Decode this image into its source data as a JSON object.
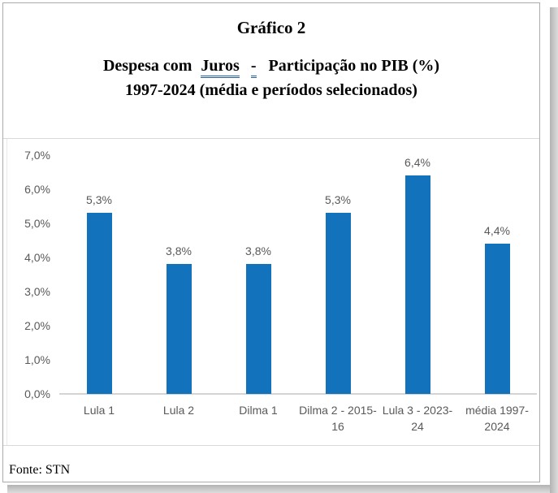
{
  "header": {
    "caption": "Gráfico 2",
    "title_prefix": "Despesa com",
    "title_underlined": "Juros",
    "title_dash": "-",
    "title_suffix": "Participação no PIB (%)",
    "title_line2": "1997-2024 (média e períodos selecionados)"
  },
  "footer": {
    "source": "Fonte: STN"
  },
  "colors": {
    "bar": "#1273bc",
    "label_gray": "#595959",
    "axis_line": "#d4d4d4",
    "separator": "#d9d9d9",
    "underline_blue": "#2660a8"
  },
  "chart_data": {
    "type": "bar",
    "title": "Despesa com Juros - Participação no PIB (%) 1997-2024 (média e períodos selecionados)",
    "categories": [
      "Lula 1",
      "Lula 2",
      "Dilma 1",
      "Dilma 2 - 2015-16",
      "Lula 3 - 2023-24",
      "média 1997-2024"
    ],
    "values": [
      5.3,
      3.8,
      3.8,
      5.3,
      6.4,
      4.4
    ],
    "data_labels": [
      "5,3%",
      "3,8%",
      "3,8%",
      "5,3%",
      "6,4%",
      "4,4%"
    ],
    "y_ticks": [
      "7,0%",
      "6,0%",
      "5,0%",
      "4,0%",
      "3,0%",
      "2,0%",
      "1,0%",
      "0,0%"
    ],
    "ylim": [
      0,
      7
    ],
    "xlabel": "",
    "ylabel": "",
    "grid": false,
    "legend_position": "none"
  }
}
